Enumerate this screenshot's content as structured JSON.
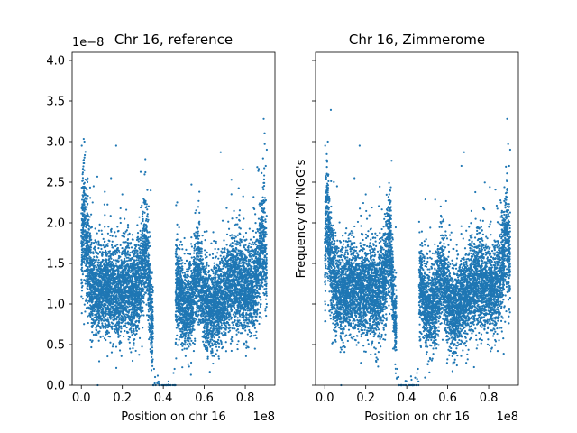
{
  "colors": {
    "points": "#1f77b4",
    "axes": "#000000",
    "background": "#ffffff"
  },
  "chart_data": [
    {
      "type": "scatter",
      "title": "Chr 16, reference",
      "xlabel": "Position on chr 16",
      "ylabel": "",
      "x_offset_label": "1e8",
      "y_offset_label": "1e−8",
      "xlim": [
        -0.045,
        0.945
      ],
      "ylim": [
        0.0,
        4.1
      ],
      "x_ticks": [
        0.0,
        0.2,
        0.4,
        0.6,
        0.8
      ],
      "x_tick_labels": [
        "0.0",
        "0.2",
        "0.4",
        "0.6",
        "0.8"
      ],
      "y_ticks": [
        0.0,
        0.5,
        1.0,
        1.5,
        2.0,
        2.5,
        3.0,
        3.5,
        4.0
      ],
      "y_tick_labels": [
        "0.0",
        "0.5",
        "1.0",
        "1.5",
        "2.0",
        "2.5",
        "3.0",
        "3.5",
        "4.0"
      ],
      "x_units": "1e8 bp",
      "y_units": "1e-8",
      "n_points_approx": 9000,
      "profile": [
        [
          0.0,
          1.4
        ],
        [
          0.01,
          2.2
        ],
        [
          0.02,
          1.8
        ],
        [
          0.035,
          1.5
        ],
        [
          0.05,
          1.25
        ],
        [
          0.08,
          1.1
        ],
        [
          0.12,
          1.2
        ],
        [
          0.18,
          1.15
        ],
        [
          0.22,
          1.2
        ],
        [
          0.26,
          1.1
        ],
        [
          0.29,
          1.3
        ],
        [
          0.305,
          1.6
        ],
        [
          0.32,
          1.7
        ],
        [
          0.335,
          1.05
        ],
        [
          0.345,
          0.75
        ]
      ],
      "profile_second_arm": [
        [
          0.465,
          1.2
        ],
        [
          0.5,
          0.95
        ],
        [
          0.54,
          1.0
        ],
        [
          0.57,
          1.4
        ],
        [
          0.59,
          1.15
        ],
        [
          0.61,
          0.95
        ],
        [
          0.63,
          0.85
        ],
        [
          0.65,
          1.0
        ],
        [
          0.7,
          1.1
        ],
        [
          0.75,
          1.3
        ],
        [
          0.8,
          1.15
        ],
        [
          0.84,
          1.2
        ],
        [
          0.87,
          1.5
        ],
        [
          0.89,
          1.9
        ],
        [
          0.9,
          1.5
        ]
      ],
      "gap": [
        0.35,
        0.46
      ],
      "outliers": [
        [
          0.002,
          2.95
        ],
        [
          0.015,
          3.0
        ],
        [
          0.17,
          2.95
        ],
        [
          0.145,
          2.55
        ],
        [
          0.68,
          2.87
        ],
        [
          0.2,
          2.35
        ],
        [
          0.06,
          2.45
        ],
        [
          0.89,
          3.28
        ],
        [
          0.895,
          2.97
        ],
        [
          0.905,
          2.9
        ],
        [
          0.9,
          2.7
        ],
        [
          0.355,
          0.2
        ],
        [
          0.36,
          0.1
        ],
        [
          0.45,
          0.15
        ],
        [
          0.455,
          0.2
        ],
        [
          0.08,
          0.0
        ],
        [
          0.25,
          0.3
        ]
      ]
    },
    {
      "type": "scatter",
      "title": "Chr 16, Zimmerome",
      "xlabel": "Position on chr 16",
      "ylabel": "Frequency of 'NGG's",
      "x_offset_label": "1e8",
      "y_offset_label": "",
      "xlim": [
        -0.045,
        0.945
      ],
      "ylim": [
        0.0,
        4.1
      ],
      "x_ticks": [
        0.0,
        0.2,
        0.4,
        0.6,
        0.8
      ],
      "x_tick_labels": [
        "0.0",
        "0.2",
        "0.4",
        "0.6",
        "0.8"
      ],
      "y_ticks": [
        0.0,
        0.5,
        1.0,
        1.5,
        2.0,
        2.5,
        3.0,
        3.5,
        4.0
      ],
      "y_tick_labels": [],
      "x_units": "1e8 bp",
      "y_units": "1e-8",
      "n_points_approx": 9000,
      "profile": [
        [
          0.0,
          1.4
        ],
        [
          0.01,
          2.2
        ],
        [
          0.02,
          1.8
        ],
        [
          0.035,
          1.5
        ],
        [
          0.05,
          1.25
        ],
        [
          0.08,
          1.1
        ],
        [
          0.12,
          1.2
        ],
        [
          0.18,
          1.15
        ],
        [
          0.22,
          1.2
        ],
        [
          0.26,
          1.1
        ],
        [
          0.29,
          1.3
        ],
        [
          0.305,
          1.6
        ],
        [
          0.32,
          1.7
        ],
        [
          0.335,
          1.05
        ],
        [
          0.345,
          0.75
        ]
      ],
      "profile_second_arm": [
        [
          0.465,
          1.2
        ],
        [
          0.5,
          0.95
        ],
        [
          0.54,
          1.0
        ],
        [
          0.57,
          1.4
        ],
        [
          0.59,
          1.15
        ],
        [
          0.61,
          0.95
        ],
        [
          0.63,
          0.85
        ],
        [
          0.65,
          1.0
        ],
        [
          0.7,
          1.1
        ],
        [
          0.75,
          1.3
        ],
        [
          0.8,
          1.15
        ],
        [
          0.84,
          1.2
        ],
        [
          0.87,
          1.5
        ],
        [
          0.89,
          1.9
        ],
        [
          0.9,
          1.5
        ]
      ],
      "gap": [
        0.35,
        0.46
      ],
      "outliers": [
        [
          0.002,
          2.95
        ],
        [
          0.015,
          3.0
        ],
        [
          0.17,
          2.95
        ],
        [
          0.145,
          2.55
        ],
        [
          0.68,
          2.87
        ],
        [
          0.2,
          2.35
        ],
        [
          0.06,
          2.45
        ],
        [
          0.89,
          3.28
        ],
        [
          0.895,
          2.97
        ],
        [
          0.905,
          2.9
        ],
        [
          0.9,
          2.7
        ],
        [
          0.355,
          0.2
        ],
        [
          0.36,
          0.1
        ],
        [
          0.45,
          0.15
        ],
        [
          0.455,
          0.2
        ],
        [
          0.08,
          0.0
        ],
        [
          0.25,
          0.3
        ]
      ]
    }
  ]
}
